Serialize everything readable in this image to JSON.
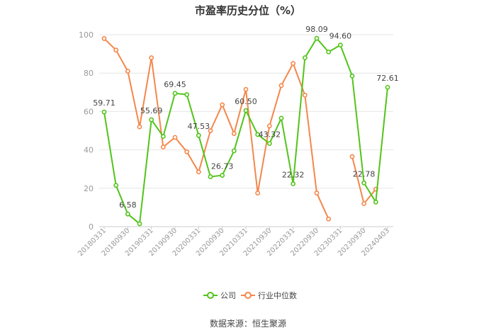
{
  "chart_data": {
    "type": "line",
    "title": "市盈率历史分位（%）",
    "source": "数据来源：恒生聚源",
    "ylim": [
      0,
      100
    ],
    "yticks": [
      0,
      20,
      40,
      60,
      80,
      100
    ],
    "x_tick_labels": [
      "20180331",
      "20180930",
      "20190331",
      "20190930",
      "20200331",
      "20200930",
      "20210331",
      "20210930",
      "20220331",
      "20220930",
      "20230331",
      "20230930",
      "20240403"
    ],
    "series": [
      {
        "name": "公司",
        "color": "#52c41a",
        "values": [
          59.71,
          21.5,
          6.58,
          1.5,
          55.69,
          47.0,
          69.45,
          68.8,
          47.53,
          26.0,
          26.73,
          39.5,
          60.5,
          48.0,
          43.32,
          56.5,
          22.32,
          88.0,
          98.09,
          91.0,
          94.6,
          78.5,
          22.78,
          12.8,
          72.61
        ],
        "labels": [
          "59.71",
          "",
          "6.58",
          "",
          "55.69",
          "",
          "69.45",
          "",
          "47.53",
          "",
          "26.73",
          "",
          "60.50",
          "",
          "43.32",
          "",
          "22.32",
          "",
          "98.09",
          "",
          "94.60",
          "",
          "22.78",
          "",
          "72.61"
        ]
      },
      {
        "name": "行业中位数",
        "color": "#f4874b",
        "values": [
          98.0,
          92.0,
          81.0,
          52.0,
          88.0,
          41.5,
          46.5,
          39.0,
          28.5,
          50.0,
          63.5,
          48.5,
          71.5,
          17.5,
          52.5,
          73.5,
          85.0,
          68.5,
          17.5,
          4.0,
          null,
          36.5,
          12.0,
          19.5,
          null
        ]
      }
    ]
  }
}
